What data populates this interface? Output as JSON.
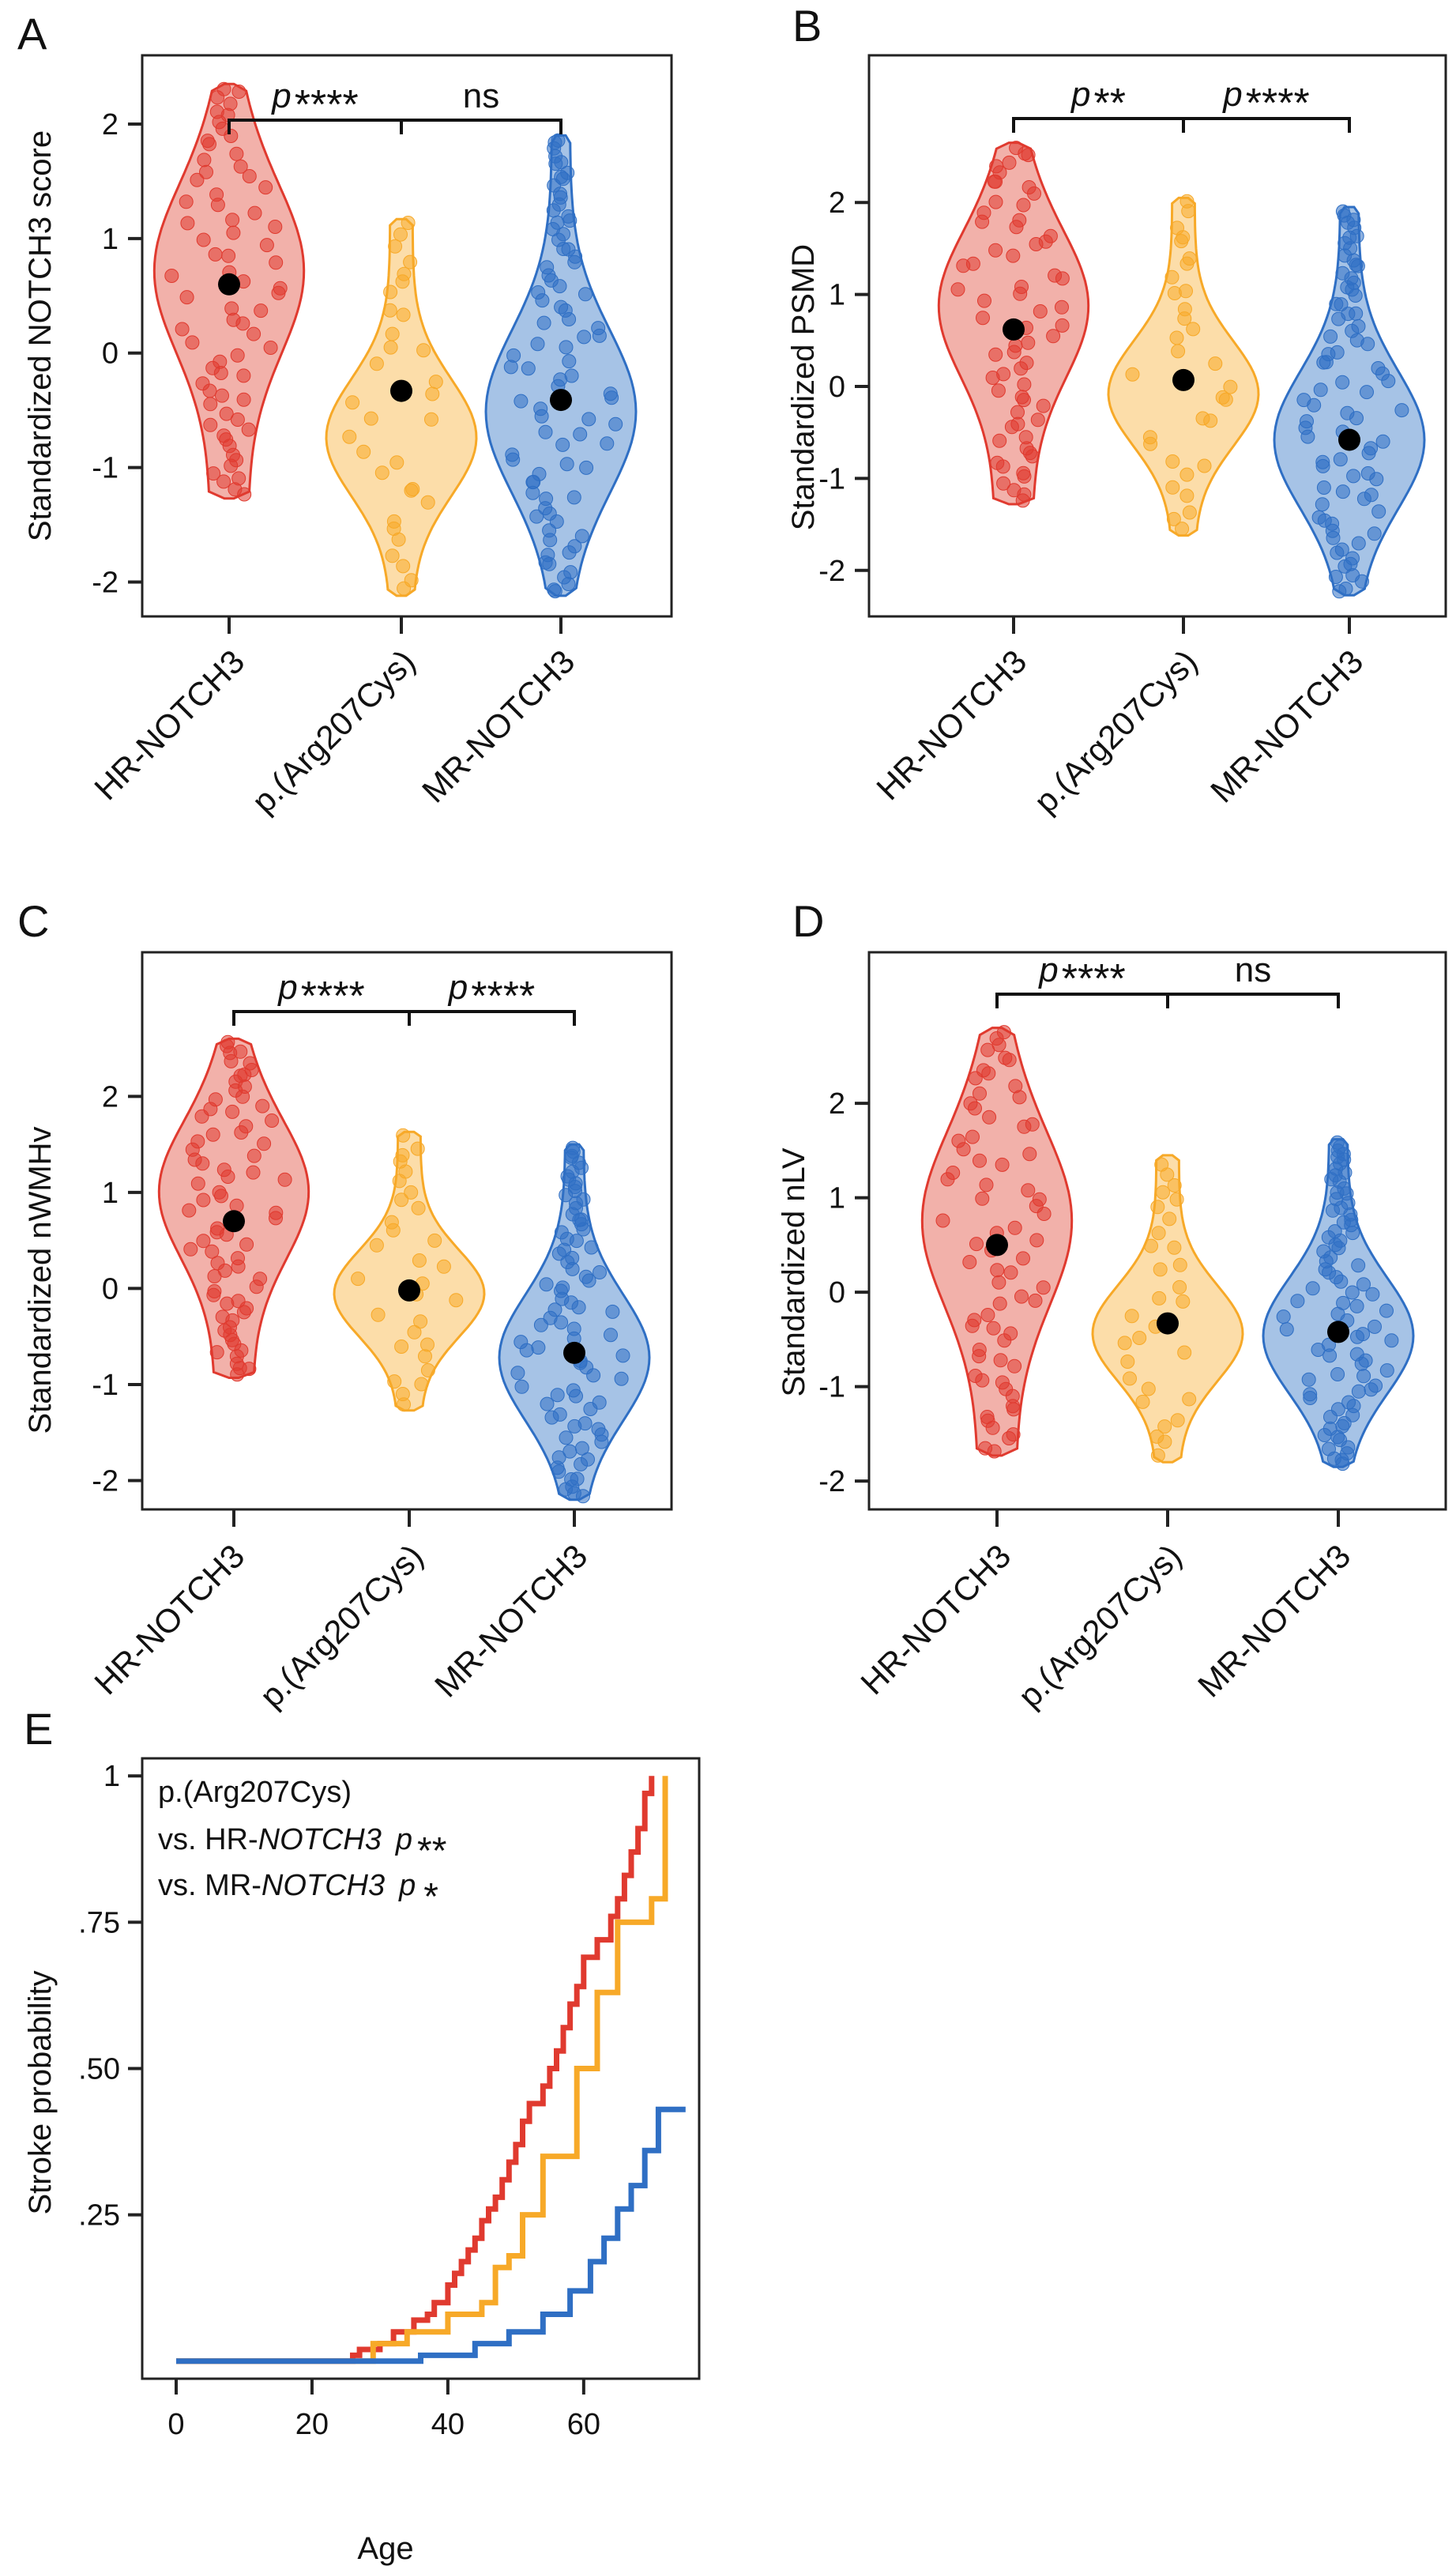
{
  "figure": {
    "panels": [
      "A",
      "B",
      "C",
      "D",
      "E"
    ]
  },
  "colors": {
    "hr": "#e03a2f",
    "hr_fill": "#f0a39b",
    "arg": "#f7a928",
    "arg_fill": "#fcd79a",
    "mr": "#2f6fc4",
    "mr_fill": "#97b8e2",
    "mean": "#000000"
  },
  "chart_data": [
    {
      "panel": "A",
      "type": "violin",
      "ylabel": "Standardized NOTCH3 score",
      "categories": [
        "HR-NOTCH3",
        "p.(Arg207Cys)",
        "MR-NOTCH3"
      ],
      "ylim": [
        -2.3,
        2.6
      ],
      "yticks": [
        -2,
        -1,
        0,
        1,
        2
      ],
      "means": [
        0.6,
        -0.33,
        -0.41
      ],
      "ranges": [
        [
          -1.27,
          2.35
        ],
        [
          -2.12,
          1.17
        ],
        [
          -2.12,
          1.9
        ]
      ],
      "n_points": [
        70,
        32,
        85
      ],
      "comparisons": [
        {
          "from": 0,
          "to": 1,
          "p_label": "p",
          "stars": "****"
        },
        {
          "from": 1,
          "to": 2,
          "p_label": "",
          "stars": "ns"
        }
      ]
    },
    {
      "panel": "B",
      "type": "violin",
      "ylabel": "Standardized PSMD",
      "categories": [
        "HR-NOTCH3",
        "p.(Arg207Cys)",
        "MR-NOTCH3"
      ],
      "ylim": [
        -2.5,
        3.6
      ],
      "yticks": [
        -2,
        -1,
        0,
        1,
        2
      ],
      "means": [
        0.62,
        0.07,
        -0.58
      ],
      "ranges": [
        [
          -1.28,
          2.65
        ],
        [
          -1.62,
          2.05
        ],
        [
          -2.27,
          1.95
        ]
      ],
      "n_points": [
        65,
        32,
        80
      ],
      "comparisons": [
        {
          "from": 0,
          "to": 1,
          "p_label": "p",
          "stars": "**"
        },
        {
          "from": 1,
          "to": 2,
          "p_label": "p",
          "stars": "****"
        }
      ]
    },
    {
      "panel": "C",
      "type": "violin",
      "ylabel": "Standardized nWMHv",
      "categories": [
        "HR-NOTCH3",
        "p.(Arg207Cys)",
        "MR-NOTCH3"
      ],
      "ylim": [
        -2.3,
        3.5
      ],
      "yticks": [
        -2,
        -1,
        0,
        1,
        2
      ],
      "means": [
        0.7,
        -0.02,
        -0.67
      ],
      "ranges": [
        [
          -0.93,
          2.6
        ],
        [
          -1.27,
          1.63
        ],
        [
          -2.2,
          1.5
        ]
      ],
      "n_points": [
        75,
        30,
        85
      ],
      "comparisons": [
        {
          "from": 0,
          "to": 1,
          "p_label": "p",
          "stars": "****"
        },
        {
          "from": 1,
          "to": 2,
          "p_label": "p",
          "stars": "****"
        }
      ]
    },
    {
      "panel": "D",
      "type": "violin",
      "ylabel": "Standardized nLV",
      "categories": [
        "HR-NOTCH3",
        "p.(Arg207Cys)",
        "MR-NOTCH3"
      ],
      "ylim": [
        -2.3,
        3.6
      ],
      "yticks": [
        -2,
        -1,
        0,
        1,
        2
      ],
      "means": [
        0.5,
        -0.33,
        -0.42
      ],
      "ranges": [
        [
          -1.73,
          2.8
        ],
        [
          -1.8,
          1.45
        ],
        [
          -1.85,
          1.62
        ]
      ],
      "n_points": [
        70,
        30,
        85
      ],
      "comparisons": [
        {
          "from": 0,
          "to": 1,
          "p_label": "p",
          "stars": "****"
        },
        {
          "from": 1,
          "to": 2,
          "p_label": "",
          "stars": "ns"
        }
      ]
    },
    {
      "panel": "E",
      "type": "line",
      "step": true,
      "xlabel": "Age",
      "ylabel": "Stroke probability",
      "xlim": [
        -5,
        77
      ],
      "ylim": [
        -0.03,
        1.03
      ],
      "xticks": [
        0,
        20,
        40,
        60
      ],
      "yticks": [
        0.25,
        0.5,
        0.75,
        1
      ],
      "ytick_labels": [
        ".25",
        ".50",
        ".75",
        "1"
      ],
      "legend": {
        "line1": "p.(Arg207Cys)",
        "line2_prefix": "vs. HR-",
        "line2_gene": "NOTCH3",
        "line2_p": "p",
        "line2_stars": "**",
        "line3_prefix": "vs. MR-",
        "line3_gene": "NOTCH3",
        "line3_p": "p",
        "line3_stars": "*"
      },
      "series": [
        {
          "group": "hr",
          "x": [
            0,
            26,
            27,
            30,
            32,
            35,
            37,
            38,
            40,
            41,
            42,
            43,
            44,
            45,
            46,
            47,
            48,
            49,
            50,
            51,
            52,
            54,
            55,
            56,
            57,
            58,
            59,
            60,
            62,
            64,
            65,
            66,
            67,
            68,
            69,
            70
          ],
          "y": [
            0,
            0.01,
            0.02,
            0.03,
            0.05,
            0.07,
            0.08,
            0.1,
            0.13,
            0.15,
            0.17,
            0.19,
            0.21,
            0.24,
            0.26,
            0.28,
            0.31,
            0.34,
            0.37,
            0.41,
            0.44,
            0.47,
            0.5,
            0.53,
            0.57,
            0.61,
            0.64,
            0.69,
            0.72,
            0.76,
            0.79,
            0.83,
            0.87,
            0.91,
            0.97,
            1.0
          ]
        },
        {
          "group": "arg",
          "x": [
            0,
            29,
            34,
            40,
            45,
            47,
            49,
            51,
            54,
            59,
            62,
            65,
            70,
            72
          ],
          "y": [
            0,
            0.03,
            0.05,
            0.08,
            0.1,
            0.16,
            0.18,
            0.25,
            0.35,
            0.5,
            0.63,
            0.75,
            0.79,
            1.0
          ]
        },
        {
          "group": "mr",
          "x": [
            0,
            36,
            44,
            49,
            54,
            58,
            61,
            63,
            65,
            67,
            69,
            71,
            75
          ],
          "y": [
            0,
            0.01,
            0.03,
            0.05,
            0.08,
            0.12,
            0.17,
            0.21,
            0.26,
            0.3,
            0.36,
            0.43,
            0.43
          ]
        }
      ]
    }
  ]
}
